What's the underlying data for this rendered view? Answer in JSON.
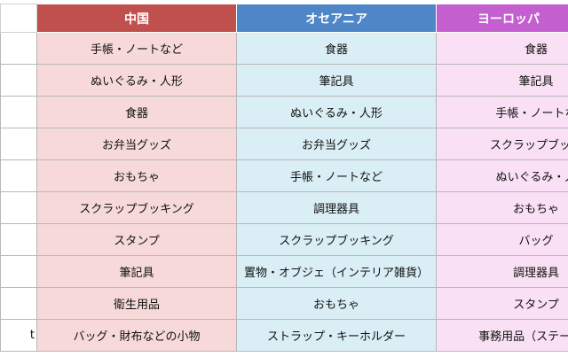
{
  "header": {
    "corner": "",
    "china": "中国",
    "oceania": "オセアニア",
    "europe": "ヨーロッパ"
  },
  "colors": {
    "china_header": "#c0504d",
    "oceania_header": "#4e86c8",
    "europe_header": "#c35fcf",
    "china_cell": "#f6d9d8",
    "oceania_cell": "#daeef5",
    "europe_cell": "#f9e0f4"
  },
  "rows": [
    {
      "rank": "",
      "china": "手帳・ノートなど",
      "oceania": "食器",
      "europe": "食器"
    },
    {
      "rank": "",
      "china": "ぬいぐるみ・人形",
      "oceania": "筆記具",
      "europe": "筆記具"
    },
    {
      "rank": "",
      "china": "食器",
      "oceania": "ぬいぐるみ・人形",
      "europe": "手帳・ノートな"
    },
    {
      "rank": "",
      "china": "お弁当グッズ",
      "oceania": "お弁当グッズ",
      "europe": "スクラップブッキ"
    },
    {
      "rank": "",
      "china": "おもちゃ",
      "oceania": "手帳・ノートなど",
      "europe": "ぬいぐるみ・人"
    },
    {
      "rank": "",
      "china": "スクラップブッキング",
      "oceania": "調理器具",
      "europe": "おもちゃ"
    },
    {
      "rank": "",
      "china": "スタンプ",
      "oceania": "スクラップブッキング",
      "europe": "バッグ"
    },
    {
      "rank": "",
      "china": "筆記具",
      "oceania": "置物・オブジェ（インテリア雑貨）",
      "europe": "調理器具"
    },
    {
      "rank": "",
      "china": "衛生用品",
      "oceania": "おもちゃ",
      "europe": "スタンプ"
    },
    {
      "rank": "t",
      "china": "バッグ・財布などの小物",
      "oceania": "ストラップ・キーホルダー",
      "europe": "事務用品（ステーショ"
    }
  ]
}
